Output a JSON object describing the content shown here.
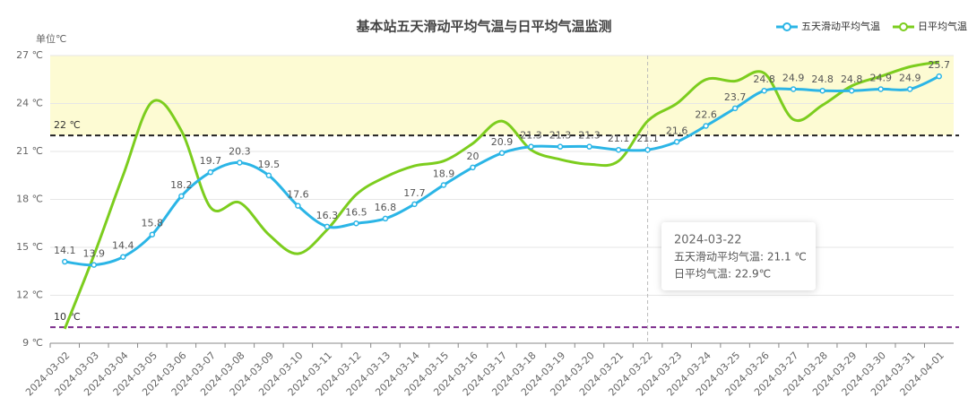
{
  "chart_data": {
    "type": "line",
    "title": "基本站五天滑动平均气温与日平均气温监测",
    "y_axis_name": "单位℃",
    "categories": [
      "2024-03-02",
      "2024-03-03",
      "2024-03-04",
      "2024-03-05",
      "2024-03-06",
      "2024-03-07",
      "2024-03-08",
      "2024-03-09",
      "2024-03-10",
      "2024-03-11",
      "2024-03-12",
      "2024-03-13",
      "2024-03-14",
      "2024-03-15",
      "2024-03-16",
      "2024-03-17",
      "2024-03-18",
      "2024-03-19",
      "2024-03-20",
      "2024-03-21",
      "2024-03-22",
      "2024-03-23",
      "2024-03-24",
      "2024-03-25",
      "2024-03-26",
      "2024-03-27",
      "2024-03-28",
      "2024-03-29",
      "2024-03-30",
      "2024-03-31",
      "2024-04-01"
    ],
    "series": [
      {
        "name": "五天滑动平均气温",
        "color": "#2bb5e6",
        "values": [
          14.1,
          13.9,
          14.4,
          15.8,
          18.2,
          19.7,
          20.3,
          19.5,
          17.6,
          16.3,
          16.5,
          16.8,
          17.7,
          18.9,
          20,
          20.9,
          21.3,
          21.3,
          21.3,
          21.1,
          21.1,
          21.6,
          22.6,
          23.7,
          24.8,
          24.9,
          24.8,
          24.8,
          24.9,
          24.9,
          25.7
        ]
      },
      {
        "name": "日平均气温",
        "color": "#7ccd1e",
        "values": [
          9.9,
          14.5,
          19.5,
          24.1,
          22.3,
          17.5,
          17.8,
          15.8,
          14.6,
          16.1,
          18.3,
          19.4,
          20.1,
          20.4,
          21.5,
          22.9,
          21.1,
          20.5,
          20.2,
          20.4,
          22.9,
          24.0,
          25.5,
          25.4,
          25.9,
          23.0,
          23.9,
          25.1,
          25.7,
          26.3,
          26.6
        ]
      }
    ],
    "ylim": [
      9,
      27
    ],
    "yticks": [
      {
        "value": 9,
        "label": "9 ℃"
      },
      {
        "value": 12,
        "label": "12 ℃"
      },
      {
        "value": 15,
        "label": "15 ℃"
      },
      {
        "value": 18,
        "label": "18 ℃"
      },
      {
        "value": 21,
        "label": "21 ℃"
      },
      {
        "value": 24,
        "label": "24 ℃"
      },
      {
        "value": 27,
        "label": "27 ℃"
      }
    ],
    "grid": true,
    "legend": "top-right",
    "mark_area": {
      "from": 22,
      "to": 27,
      "color": "#fdfbd3"
    },
    "mark_lines": [
      {
        "value": 22,
        "label": "22 ℃",
        "color": "#222222"
      },
      {
        "value": 10,
        "label": "10 ℃",
        "color": "#7a2a8a"
      }
    ],
    "tooltip": {
      "title": "2024-03-22",
      "lines": [
        "五天滑动平均气温: 21.1 ℃",
        "日平均气温: 22.9℃"
      ]
    }
  }
}
